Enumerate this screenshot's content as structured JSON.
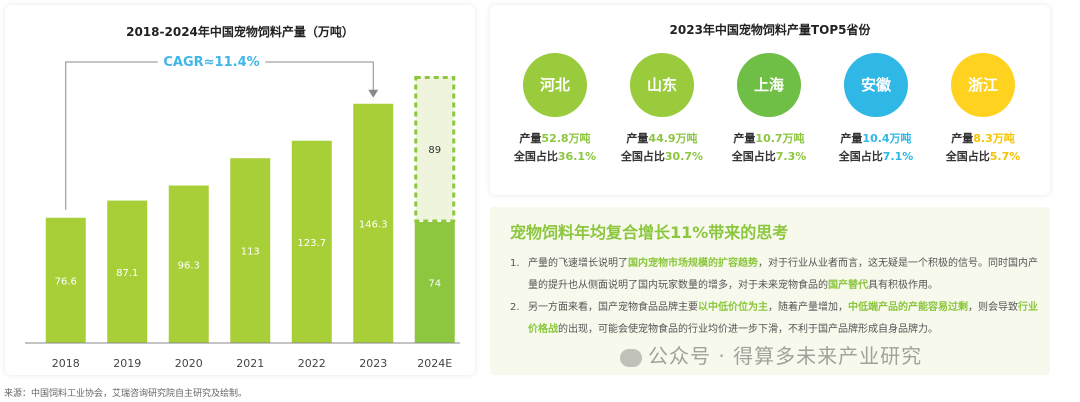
{
  "chart_data": {
    "type": "bar",
    "title": "2018-2024年中国宠物饲料产量（万吨）",
    "categories": [
      "2018",
      "2019",
      "2020",
      "2021",
      "2022",
      "2023",
      "2024E"
    ],
    "values": [
      76.6,
      87.1,
      96.3,
      113,
      123.7,
      146.3,
      74
    ],
    "value_labels": [
      "76.6",
      "87.1",
      "96.3",
      "113",
      "123.7",
      "146.3",
      "74"
    ],
    "forecast_extra": {
      "category": "2024E",
      "value": 89,
      "label": "89"
    },
    "annotation": "CAGR≈11.4%",
    "ylim": [
      0,
      170
    ],
    "grid": false,
    "colors": {
      "bar": "#a9cf38",
      "forecast_solid": "#8dc63f",
      "forecast_dashed": "#8dc63f",
      "forecast_fill": "#eef5dc",
      "annotation": "#3fb6e8",
      "arrow": "#888888"
    }
  },
  "provinces": {
    "title": "2023年中国宠物饲料产量TOP5省份",
    "output_label": "产量",
    "share_label": "全国占比",
    "items": [
      {
        "name": "河北",
        "output": "52.8万吨",
        "share": "36.1%",
        "color": "#9acb3c"
      },
      {
        "name": "山东",
        "output": "44.9万吨",
        "share": "30.7%",
        "color": "#9acb3c"
      },
      {
        "name": "上海",
        "output": "10.7万吨",
        "share": "7.3%",
        "color": "#6fbe45"
      },
      {
        "name": "安徽",
        "output": "10.4万吨",
        "share": "7.1%",
        "color": "#2fb7e6"
      },
      {
        "name": "浙江",
        "output": "8.3万吨",
        "share": "5.7%",
        "color": "#ffd21f"
      }
    ],
    "highlight_colors": {
      "green": "#8cc63f",
      "blue": "#2fb7e6",
      "yellow": "#f5c400"
    }
  },
  "thinking": {
    "title": "宠物饲料年均复合增长11%带来的思考",
    "items": [
      {
        "num": "1.",
        "parts": [
          {
            "t": "产量的飞速增长说明了",
            "hl": false
          },
          {
            "t": "国内宠物市场规模的扩容趋势",
            "hl": true
          },
          {
            "t": "，对于行业从业者而言，这无疑是一个积极的信号。同时国内产量的提升也从侧面说明了国内玩家数量的增多，对于未来宠物食品的",
            "hl": false
          },
          {
            "t": "国产替代",
            "hl": true
          },
          {
            "t": "具有积极作用。",
            "hl": false
          }
        ]
      },
      {
        "num": "2.",
        "parts": [
          {
            "t": "另一方面来看，国产宠物食品品牌主要",
            "hl": false
          },
          {
            "t": "以中低价位为主",
            "hl": true
          },
          {
            "t": "，随着产量增加，",
            "hl": false
          },
          {
            "t": "中低端产品的产能容易过剩",
            "hl": true
          },
          {
            "t": "，则会导致",
            "hl": false
          },
          {
            "t": "行业价格战",
            "hl": true
          },
          {
            "t": "的出现，可能会使宠物食品的行业均价进一步下滑，不利于国产品牌形成自身品牌力。",
            "hl": false
          }
        ]
      }
    ]
  },
  "watermark": "公众号 · 得算多未来产业研究",
  "source": "来源：中国饲料工业协会，艾瑞咨询研究院自主研究及绘制。"
}
